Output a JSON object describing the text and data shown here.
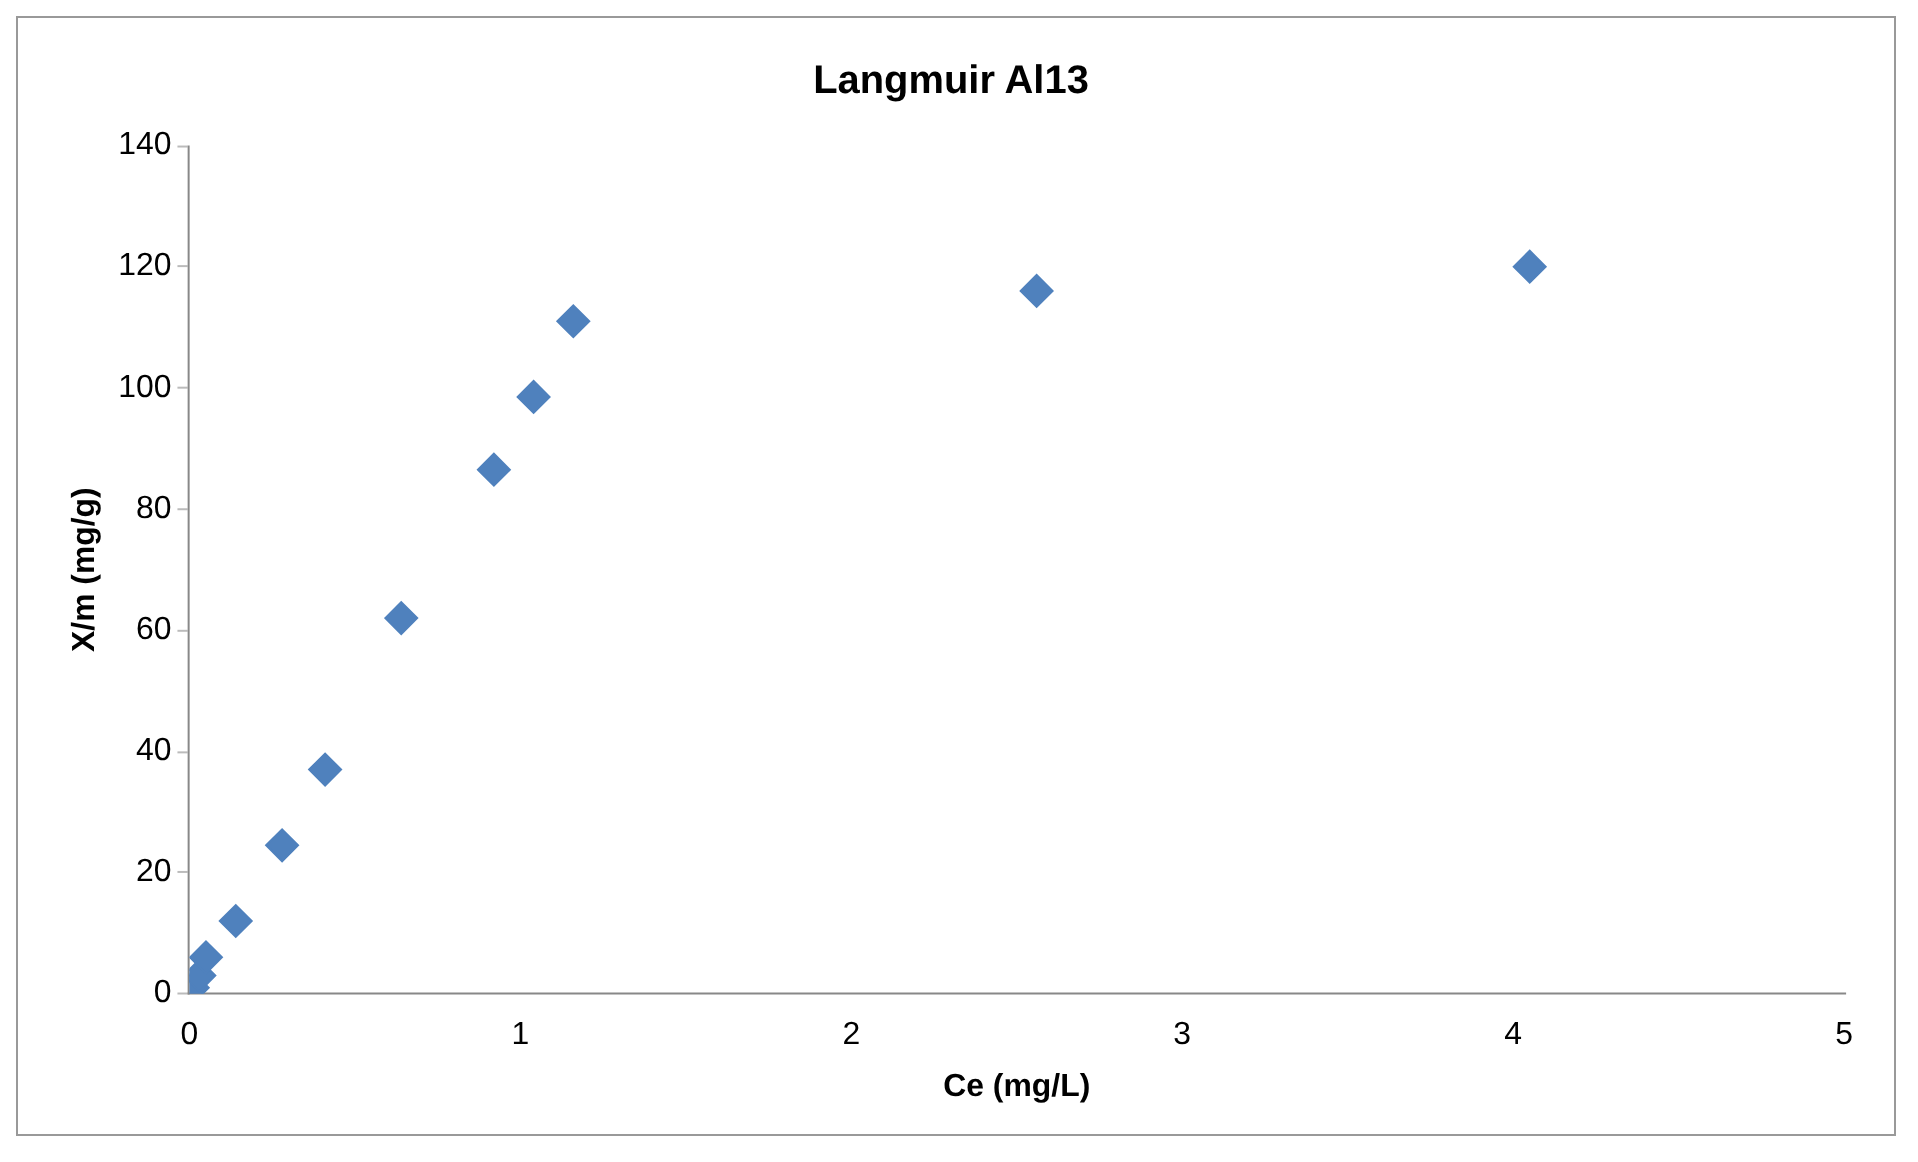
{
  "chart_data": {
    "type": "scatter",
    "title": "Langmuir Al13",
    "xlabel": "Ce (mg/L)",
    "ylabel": "X/m (mg/g)",
    "x": [
      0.01,
      0.03,
      0.05,
      0.14,
      0.28,
      0.41,
      0.64,
      0.92,
      1.04,
      1.16,
      2.56,
      4.05
    ],
    "series": [
      {
        "color": "#4f81bd",
        "values": [
          1,
          3,
          6,
          12,
          24.5,
          37,
          62,
          86.5,
          98.5,
          111,
          116,
          120
        ]
      }
    ],
    "xlim": [
      0,
      5
    ],
    "xticks": [
      0,
      1,
      2,
      3,
      4,
      5
    ],
    "ylim": [
      0,
      140
    ],
    "yticks": [
      0,
      20,
      40,
      60,
      80,
      100,
      120,
      140
    ],
    "marker": "diamond",
    "grid": false,
    "legend": false
  }
}
